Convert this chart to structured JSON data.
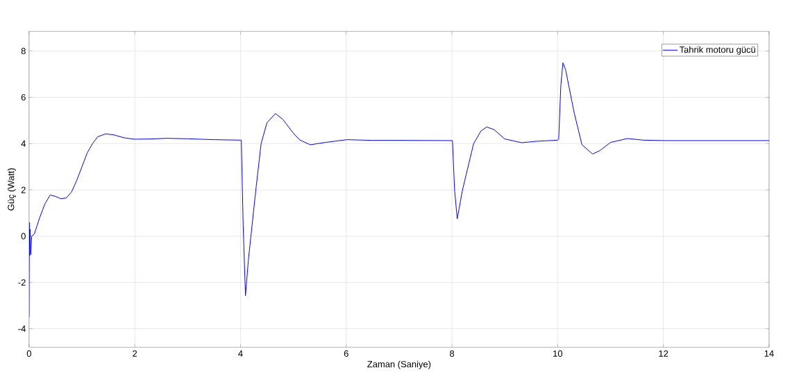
{
  "chart_data": {
    "type": "line",
    "xlabel": "Zaman (Saniye)",
    "ylabel": "Güç (Watt)",
    "x": [
      0,
      0.005,
      0.01,
      0.02,
      0.03,
      0.05,
      0.1,
      0.2,
      0.3,
      0.4,
      0.5,
      0.6,
      0.7,
      0.8,
      0.9,
      1.0,
      1.1,
      1.2,
      1.3,
      1.45,
      1.6,
      1.8,
      2.0,
      2.3,
      2.6,
      3.0,
      3.5,
      4.0,
      4.015,
      4.05,
      4.094,
      4.15,
      4.29,
      4.39,
      4.5,
      4.66,
      4.8,
      5.0,
      5.12,
      5.32,
      5.6,
      6.01,
      6.5,
      7.0,
      8.0,
      8.01,
      8.05,
      8.1,
      8.2,
      8.41,
      8.55,
      8.66,
      8.8,
      9.0,
      9.32,
      9.6,
      10.0,
      10.02,
      10.06,
      10.1,
      10.15,
      10.31,
      10.46,
      10.66,
      10.8,
      11.0,
      11.32,
      11.62,
      12.02,
      13.0,
      14.0
    ],
    "series": [
      {
        "name": "Tahrik motoru gücü",
        "color": "#0000ff",
        "values": [
          -3.5,
          0.6,
          -0.85,
          0.3,
          -0.8,
          0,
          0.1,
          0.8,
          1.4,
          1.78,
          1.72,
          1.62,
          1.65,
          1.9,
          2.4,
          3.0,
          3.6,
          4.0,
          4.3,
          4.42,
          4.38,
          4.25,
          4.19,
          4.2,
          4.23,
          4.21,
          4.17,
          4.15,
          4.15,
          0.5,
          -2.57,
          -1.0,
          2.0,
          4.0,
          4.9,
          5.3,
          5.05,
          4.45,
          4.16,
          3.95,
          4.05,
          4.17,
          4.14,
          4.14,
          4.13,
          4.13,
          2.0,
          0.75,
          2.0,
          4.0,
          4.55,
          4.72,
          4.6,
          4.2,
          4.04,
          4.1,
          4.15,
          4.2,
          6.5,
          7.49,
          7.2,
          5.36,
          3.95,
          3.55,
          3.7,
          4.05,
          4.22,
          4.15,
          4.13,
          4.13,
          4.13
        ]
      }
    ],
    "xlim": [
      0,
      14
    ],
    "ylim": [
      -4.8,
      8.85
    ],
    "xticks": [
      0,
      2,
      4,
      6,
      8,
      10,
      12,
      14
    ],
    "yticks": [
      -4,
      -2,
      0,
      2,
      4,
      6,
      8
    ],
    "grid": true,
    "legend": "top right",
    "marker": "none",
    "line_style": "solid"
  }
}
